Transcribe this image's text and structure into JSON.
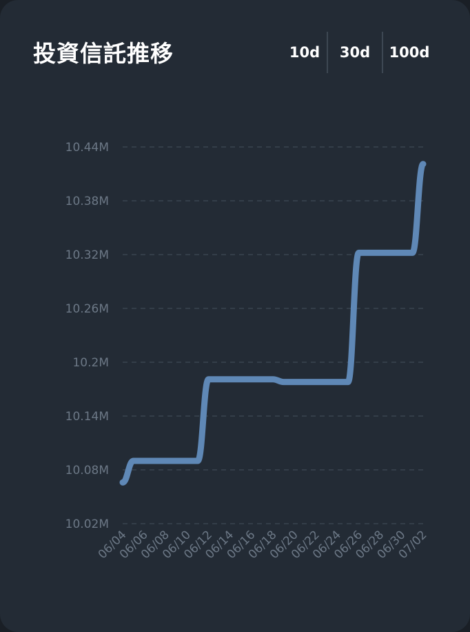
{
  "header": {
    "title": "投資信託推移"
  },
  "range_tabs": [
    {
      "label": "10d"
    },
    {
      "label": "30d"
    },
    {
      "label": "100d"
    }
  ],
  "colors": {
    "background": "#232b35",
    "line": "#5f88b6",
    "grid": "#3b4450",
    "tick_text": "#6c7886"
  },
  "chart_data": {
    "type": "line",
    "title": "",
    "xlabel": "",
    "ylabel": "",
    "ylim": [
      10020000,
      10440000
    ],
    "yticks": [
      10020000,
      10080000,
      10140000,
      10200000,
      10260000,
      10320000,
      10380000,
      10440000
    ],
    "ytick_labels": [
      "10.02M",
      "10.08M",
      "10.14M",
      "10.2M",
      "10.26M",
      "10.32M",
      "10.38M",
      "10.44M"
    ],
    "x_tick_labels": [
      "06/04",
      "06/06",
      "06/08",
      "06/10",
      "06/12",
      "06/14",
      "06/16",
      "06/18",
      "06/20",
      "06/22",
      "06/24",
      "06/26",
      "06/28",
      "06/30",
      "07/02"
    ],
    "grid": "horizontal dashed",
    "legend": "none",
    "series": [
      {
        "x": [
          "06/04",
          "06/05",
          "06/06",
          "06/07",
          "06/08",
          "06/09",
          "06/10",
          "06/11",
          "06/12",
          "06/13",
          "06/14",
          "06/15",
          "06/16",
          "06/17",
          "06/18",
          "06/19",
          "06/20",
          "06/21",
          "06/22",
          "06/23",
          "06/24",
          "06/25",
          "06/26",
          "06/27",
          "06/28",
          "06/29",
          "06/30",
          "07/01",
          "07/02"
        ],
        "values": [
          10066000,
          10090000,
          10090000,
          10090000,
          10090000,
          10090000,
          10090000,
          10090000,
          10181000,
          10181000,
          10181000,
          10181000,
          10181000,
          10181000,
          10181000,
          10178000,
          10178000,
          10178000,
          10178000,
          10178000,
          10178000,
          10178000,
          10322000,
          10322000,
          10322000,
          10322000,
          10322000,
          10322000,
          10421000
        ]
      }
    ]
  }
}
